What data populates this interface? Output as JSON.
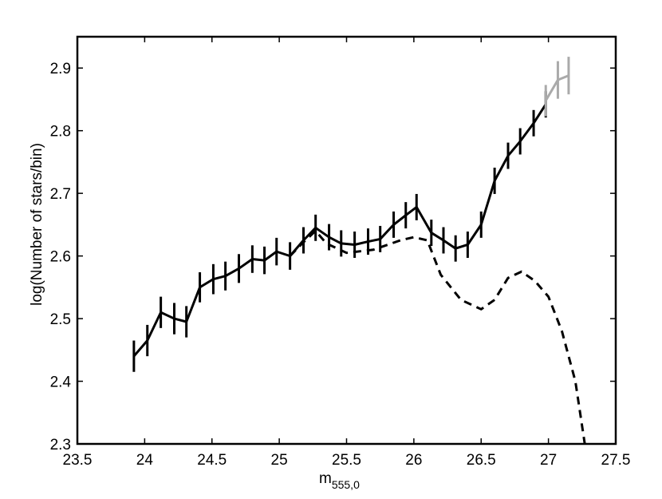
{
  "chart_data": {
    "type": "line",
    "xlabel": "m",
    "xlabel_sub": "555,0",
    "ylabel": "log(Number of stars/bin)",
    "xlim": [
      23.5,
      27.5
    ],
    "xticks": [
      23.5,
      24,
      24.5,
      25,
      25.5,
      26,
      26.5,
      27,
      27.5
    ],
    "ylim": [
      2.3,
      2.95
    ],
    "yticks": [
      2.3,
      2.4,
      2.5,
      2.6,
      2.7,
      2.8,
      2.9
    ],
    "series": [
      {
        "color": "#000000",
        "dash": false,
        "x": [
          23.92,
          24.02,
          24.12,
          24.22,
          24.31,
          24.41,
          24.51,
          24.6,
          24.7,
          24.8,
          24.89,
          24.98,
          25.08,
          25.18,
          25.27,
          25.37,
          25.46,
          25.56,
          25.66,
          25.75,
          25.85,
          25.94,
          26.02,
          26.13,
          26.22,
          26.31,
          26.4,
          26.5,
          26.6,
          26.7,
          26.79,
          26.89,
          26.98
        ],
        "values": [
          2.44,
          2.465,
          2.51,
          2.5,
          2.495,
          2.55,
          2.563,
          2.568,
          2.58,
          2.595,
          2.593,
          2.607,
          2.6,
          2.625,
          2.645,
          2.63,
          2.62,
          2.618,
          2.623,
          2.627,
          2.65,
          2.665,
          2.678,
          2.637,
          2.625,
          2.612,
          2.618,
          2.65,
          2.72,
          2.76,
          2.783,
          2.812,
          2.842
        ],
        "errors": [
          0.025,
          0.025,
          0.025,
          0.025,
          0.025,
          0.024,
          0.024,
          0.023,
          0.023,
          0.022,
          0.022,
          0.022,
          0.022,
          0.021,
          0.021,
          0.021,
          0.021,
          0.021,
          0.021,
          0.021,
          0.021,
          0.021,
          0.021,
          0.021,
          0.021,
          0.021,
          0.021,
          0.021,
          0.021,
          0.021,
          0.021,
          0.021,
          0.021
        ]
      },
      {
        "color": "#aaaaaa",
        "dash": false,
        "x": [
          26.98,
          27.07,
          27.15
        ],
        "values": [
          2.848,
          2.881,
          2.888
        ],
        "errors": [
          0.025,
          0.03,
          0.03
        ]
      },
      {
        "color": "#000000",
        "dash": true,
        "x": [
          25.08,
          25.18,
          25.27,
          25.35,
          25.5,
          25.7,
          25.9,
          26.0,
          26.1,
          26.2,
          26.35,
          26.5,
          26.6,
          26.7,
          26.8,
          26.9,
          27.0,
          27.1,
          27.2,
          27.27
        ],
        "values": [
          2.6,
          2.622,
          2.64,
          2.62,
          2.605,
          2.61,
          2.625,
          2.63,
          2.625,
          2.57,
          2.53,
          2.515,
          2.53,
          2.565,
          2.575,
          2.56,
          2.535,
          2.48,
          2.4,
          2.3
        ]
      }
    ]
  }
}
